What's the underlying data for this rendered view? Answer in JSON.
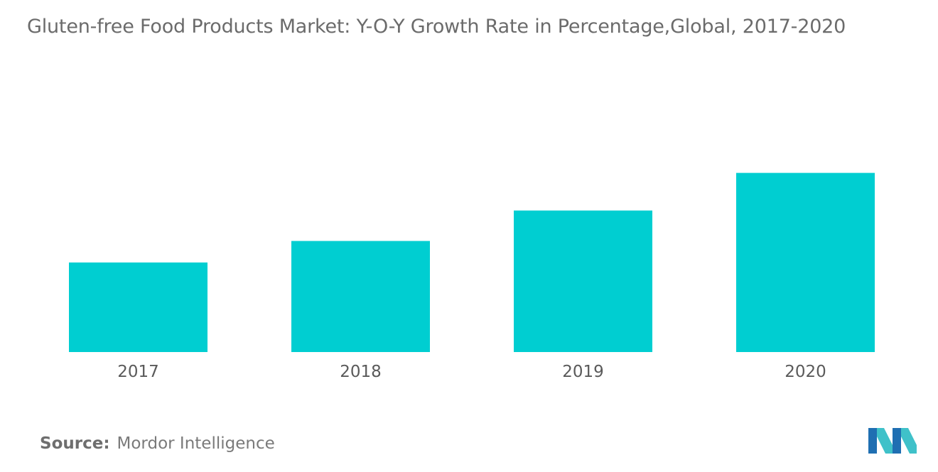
{
  "chart_data": {
    "type": "bar",
    "title": "Gluten-free Food Products Market: Y-O-Y Growth Rate in Percentage,Global,  2017-2020",
    "categories": [
      "2017",
      "2018",
      "2019",
      "2020"
    ],
    "values": [
      5.0,
      6.2,
      7.9,
      10.0
    ],
    "xlabel": "",
    "ylabel": "",
    "ylim": [
      0,
      10.5
    ],
    "grid": false,
    "legend": "none",
    "bar_color": "#00CED1"
  },
  "source": {
    "label": "Source:",
    "text": "Mordor Intelligence"
  },
  "colors": {
    "bar": "#00CED1",
    "title": "#6b6b6b",
    "logo_dark": "#1f6fb2",
    "logo_light": "#3fc1c9"
  },
  "logo": {
    "icon": "mordor-intelligence-logo-icon"
  }
}
